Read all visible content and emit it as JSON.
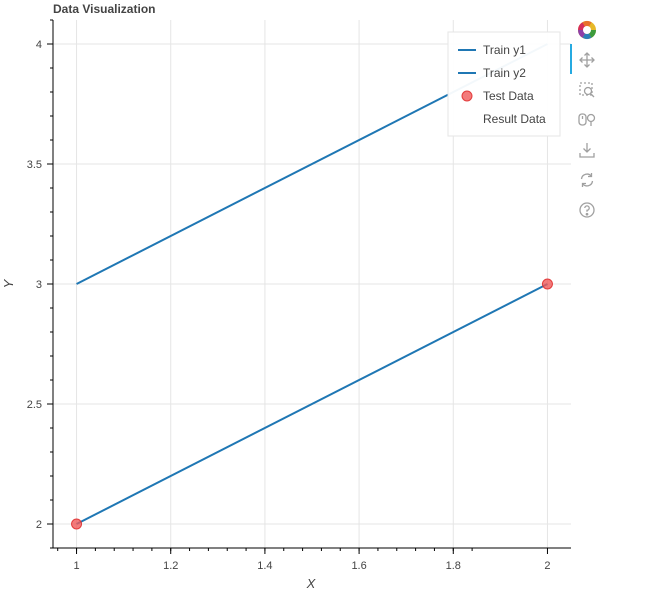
{
  "chart_data": {
    "type": "line",
    "title": "Data Visualization",
    "xlabel": "X",
    "ylabel": "Y",
    "xlim": [
      0.95,
      2.05
    ],
    "ylim": [
      1.9,
      4.1
    ],
    "x_ticks": [
      1,
      1.2,
      1.4,
      1.6,
      1.8,
      2
    ],
    "x_tick_labels": [
      "1",
      "1.2",
      "1.4",
      "1.6",
      "1.8",
      "2"
    ],
    "y_ticks": [
      2,
      2.5,
      3,
      3.5,
      4
    ],
    "y_tick_labels": [
      "2",
      "2.5",
      "3",
      "3.5",
      "4"
    ],
    "grid": true,
    "legend_position": "top-right",
    "series": [
      {
        "name": "Train y1",
        "kind": "line",
        "color": "#1f77b4",
        "x": [
          1,
          2
        ],
        "y": [
          3,
          4
        ]
      },
      {
        "name": "Train y2",
        "kind": "line",
        "color": "#1f77b4",
        "x": [
          1,
          2
        ],
        "y": [
          2,
          3
        ]
      },
      {
        "name": "Test Data",
        "kind": "scatter",
        "color": "#f05a5a",
        "x": [
          1,
          2
        ],
        "y": [
          2,
          3
        ]
      },
      {
        "name": "Result Data",
        "kind": "none",
        "color": "",
        "x": [],
        "y": []
      }
    ]
  },
  "toolbar": {
    "tools": [
      "bokeh-logo-icon",
      "pan-icon",
      "box-zoom-icon",
      "wheel-zoom-icon",
      "save-icon",
      "reset-icon",
      "help-icon"
    ]
  }
}
